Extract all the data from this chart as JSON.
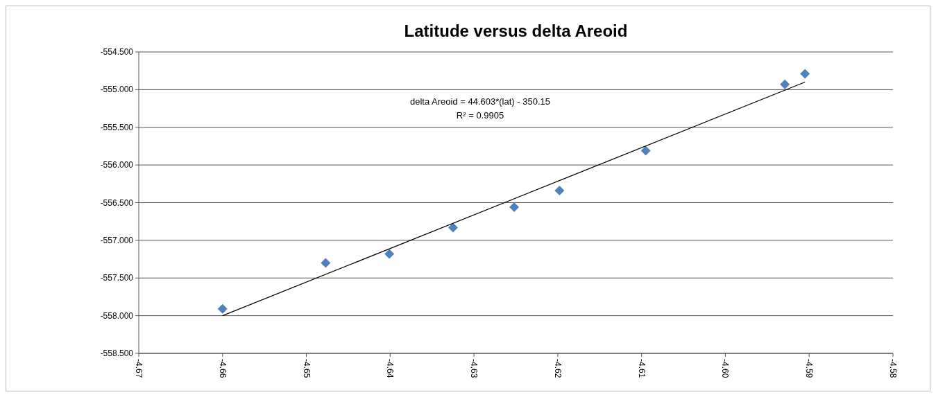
{
  "chart_data": {
    "type": "scatter",
    "title": "Latitude versus delta Areoid",
    "series": [
      {
        "type": "scatter",
        "color": "#4f81bd",
        "marker": "diamond",
        "x": [
          -4.66,
          -4.6477,
          -4.6401,
          -4.6325,
          -4.6252,
          -4.6198,
          -4.6095,
          -4.5929,
          -4.5905
        ],
        "values": [
          -557.91,
          -557.3,
          -557.18,
          -556.83,
          -556.56,
          -556.34,
          -555.81,
          -554.93,
          -554.79
        ]
      },
      {
        "type": "line",
        "color": "#000000",
        "marker": "none",
        "x": [
          -4.66,
          -4.5905
        ],
        "values": [
          -558.0,
          -554.9
        ]
      }
    ],
    "xlim": [
      -4.67,
      -4.58
    ],
    "xticks": [
      -4.67,
      -4.66,
      -4.65,
      -4.64,
      -4.63,
      -4.62,
      -4.61,
      {
        "value": -4.6,
        "label": "-4.60"
      },
      -4.59,
      -4.58
    ],
    "ylim": [
      -558.5,
      -554.5
    ],
    "yticks": [
      {
        "value": -558.5,
        "label": "-558.500"
      },
      {
        "value": -558,
        "label": "-558.000"
      },
      {
        "value": -557.5,
        "label": "-557.500"
      },
      {
        "value": -557,
        "label": "-557.000"
      },
      {
        "value": -556.5,
        "label": "-556.500"
      },
      {
        "value": -556,
        "label": "-556.000"
      },
      {
        "value": -555.5,
        "label": "-555.500"
      },
      {
        "value": -555,
        "label": "-555.000"
      },
      {
        "value": -554.5,
        "label": "-554.500"
      }
    ],
    "grid": "y",
    "annotations": [
      "delta Areoid = 44.603*(lat) - 350.15",
      "R² = 0.9905"
    ]
  }
}
